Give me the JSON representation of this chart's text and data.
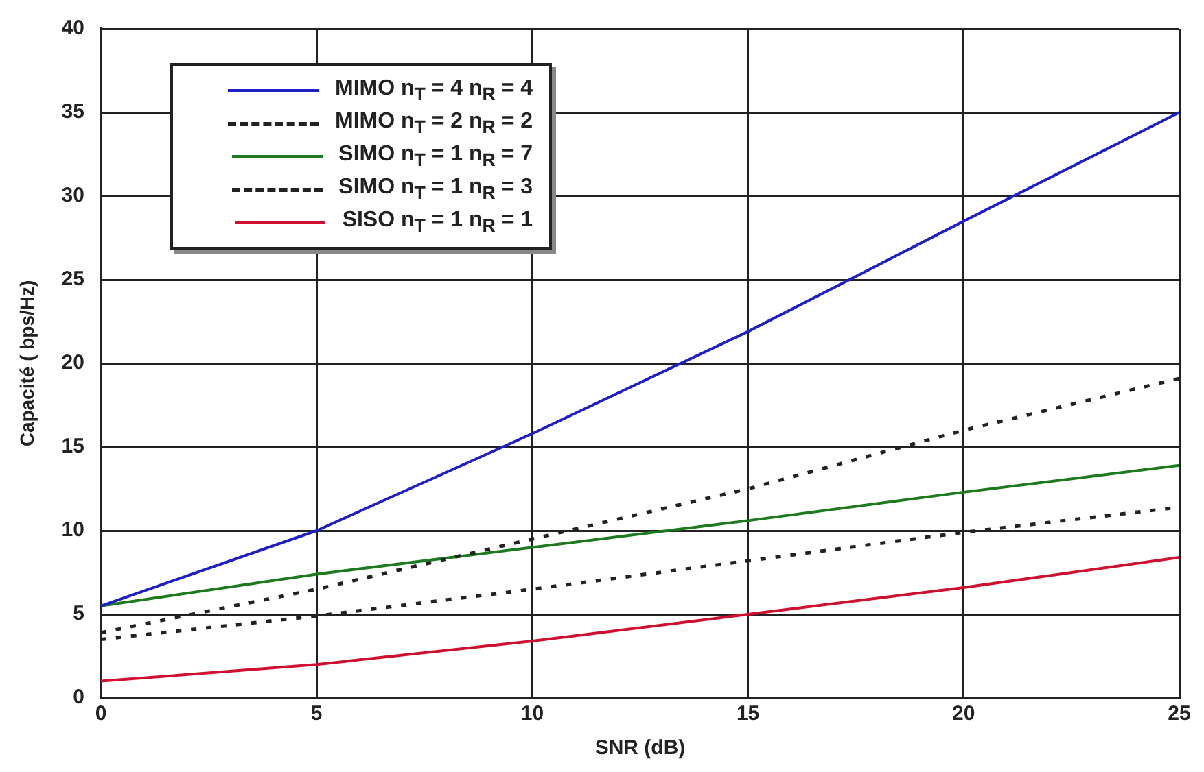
{
  "chart_data": {
    "type": "line",
    "xlabel": "SNR (dB)",
    "ylabel": "Capacité ( bps/Hz)",
    "x": [
      0,
      5,
      10,
      15,
      20,
      25
    ],
    "xlim": [
      0,
      25
    ],
    "xticks": [
      0,
      5,
      10,
      15,
      20,
      25
    ],
    "ylim": [
      0,
      40
    ],
    "yticks": [
      0,
      5,
      10,
      15,
      20,
      25,
      30,
      35,
      40
    ],
    "grid": true,
    "legend": "top left",
    "marker": "none",
    "series": [
      {
        "name": "MIMO n$_{T}$ = 4 n$_{R}$ = 4",
        "color": "#1f1fc8",
        "line_style": "solid",
        "values": [
          5.5,
          10,
          15.8,
          21.9,
          28.5,
          35
        ]
      },
      {
        "name": "MIMO n$_{T}$ = 2 n$_{R}$ = 2",
        "color": "#222222",
        "line_style": "dashed",
        "values": [
          3.9,
          6.5,
          9.5,
          12.5,
          16,
          19.1
        ]
      },
      {
        "name": "SIMO n$_{T}$ = 1 n$_{R}$ = 7",
        "color": "#1e7a1e",
        "line_style": "solid",
        "values": [
          5.5,
          7.4,
          9,
          10.6,
          12.3,
          13.9
        ]
      },
      {
        "name": "SIMO n$_{T}$ = 1 n$_{R}$ = 3",
        "color": "#222222",
        "line_style": "dashed",
        "values": [
          3.5,
          4.9,
          6.5,
          8.2,
          9.9,
          11.4
        ]
      },
      {
        "name": "SISO n$_{T}$ = 1 n$_{R}$ = 1",
        "color": "#d01030",
        "line_style": "solid",
        "values": [
          1,
          2,
          3.4,
          5,
          6.6,
          8.4
        ]
      }
    ]
  }
}
